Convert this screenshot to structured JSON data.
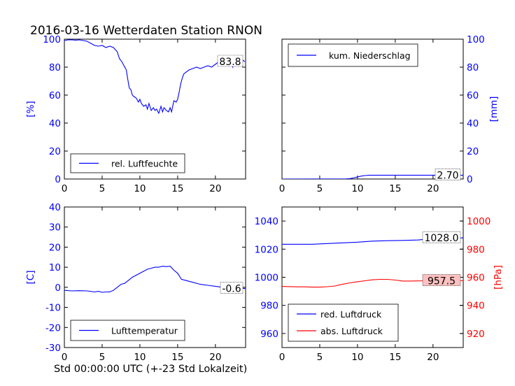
{
  "figure": {
    "title": "2016-03-16 Wetterdaten Station RNON",
    "xlabel": "Std 00:00:00 UTC (+-23 Std Lokalzeit)"
  },
  "colors": {
    "blue": "#0000ff",
    "red": "#ff0000",
    "axis": "#000000",
    "box_fill": "#ffc0c0"
  },
  "chart_data": [
    {
      "type": "line",
      "name": "humidity",
      "xlim": [
        0,
        24
      ],
      "ylim": [
        0,
        100
      ],
      "xticks": [
        0,
        5,
        10,
        15,
        20
      ],
      "yticks": [
        0,
        20,
        40,
        60,
        80,
        100
      ],
      "ylabel": "[%]",
      "ylabel_color": "#0000ff",
      "ytick_color": "#0000ff",
      "legend": "bottom-left",
      "last_value": "83.8",
      "series": [
        {
          "name": "rel. Luftfeuchte",
          "color": "#0000ff",
          "x": [
            0,
            0.5,
            1,
            1.5,
            2,
            2.5,
            3,
            3.5,
            4,
            4.5,
            5,
            5.5,
            6,
            6.5,
            7,
            7.3,
            7.6,
            8,
            8.2,
            8.4,
            8.6,
            8.8,
            9,
            9.2,
            9.5,
            9.8,
            10,
            10.2,
            10.5,
            10.8,
            11,
            11.2,
            11.5,
            11.8,
            12,
            12.2,
            12.5,
            12.8,
            13,
            13.2,
            13.5,
            13.8,
            14,
            14.2,
            14.5,
            14.8,
            15,
            15.2,
            15.4,
            15.6,
            15.8,
            16,
            16.5,
            17,
            17.5,
            18,
            18.5,
            19,
            19.5,
            20,
            20.5,
            21,
            21.3,
            21.6,
            22,
            22.3,
            22.6,
            23,
            23.3,
            23.6,
            23.9
          ],
          "y": [
            99,
            99.5,
            99.5,
            99.3,
            99.5,
            99,
            98.5,
            97,
            95.5,
            95,
            95.5,
            94,
            95,
            94,
            91,
            86,
            84,
            80,
            78,
            71,
            65,
            64,
            60,
            59,
            58,
            55,
            57,
            54,
            52,
            53,
            50,
            54,
            49,
            51,
            49,
            50,
            47,
            52,
            48,
            51,
            49,
            48,
            51,
            48,
            56,
            55,
            57,
            62,
            68,
            72,
            75,
            76,
            78,
            79,
            80,
            79,
            80,
            81,
            80,
            82,
            84,
            85,
            86,
            84,
            86,
            80,
            85,
            83,
            82,
            85,
            84
          ]
        }
      ]
    },
    {
      "type": "line",
      "name": "precipitation",
      "xlim": [
        0,
        24
      ],
      "ylim": [
        0,
        100
      ],
      "xticks": [
        0,
        5,
        10,
        15,
        20
      ],
      "yticks": [
        0,
        20,
        40,
        60,
        80,
        100
      ],
      "ylabel": "[mm]",
      "ylabel_side": "right",
      "ylabel_color": "#0000ff",
      "ytick_color": "#0000ff",
      "legend": "top-left",
      "last_value": "2.70",
      "series": [
        {
          "name": "kum. Niederschlag",
          "color": "#0000ff",
          "x": [
            0,
            8.5,
            9,
            9.5,
            10,
            10.5,
            11,
            11.5,
            12,
            15,
            20,
            24
          ],
          "y": [
            0,
            0.1,
            0.3,
            0.8,
            1.5,
            2.1,
            2.5,
            2.7,
            2.7,
            2.7,
            2.7,
            2.7
          ]
        }
      ]
    },
    {
      "type": "line",
      "name": "temperature",
      "xlim": [
        0,
        24
      ],
      "ylim": [
        -30,
        40
      ],
      "xticks": [
        0,
        5,
        10,
        15,
        20
      ],
      "yticks": [
        -30,
        -20,
        -10,
        0,
        10,
        20,
        30,
        40
      ],
      "ylabel": "[C]",
      "ylabel_color": "#0000ff",
      "ytick_color": "#0000ff",
      "legend": "bottom-left",
      "last_value": "-0.6",
      "series": [
        {
          "name": "Lufttemperatur",
          "color": "#0000ff",
          "x": [
            0,
            1,
            2,
            3,
            4,
            4.5,
            5,
            5.5,
            6,
            6.5,
            7,
            7.5,
            8,
            8.5,
            9,
            9.5,
            10,
            10.5,
            11,
            11.5,
            12,
            12.5,
            13,
            13.5,
            14,
            14.5,
            15,
            15.5,
            16,
            17,
            18,
            19,
            20,
            21,
            22,
            23,
            24
          ],
          "y": [
            -1.5,
            -1.8,
            -1.7,
            -1.8,
            -2.3,
            -2,
            -2.5,
            -2.3,
            -2.3,
            -1.5,
            0,
            1.5,
            2,
            3.5,
            5,
            6,
            7,
            8,
            9,
            9.5,
            10,
            10,
            10.5,
            10.3,
            10.5,
            8.5,
            7,
            4,
            3.5,
            2.5,
            1.5,
            1,
            0.5,
            0,
            -0.3,
            -0.5,
            -0.6
          ]
        }
      ]
    },
    {
      "type": "line",
      "name": "pressure",
      "xlim": [
        0,
        24
      ],
      "ylim": [
        950,
        1050
      ],
      "ylim_right": [
        910,
        1010
      ],
      "xticks": [
        0,
        5,
        10,
        15,
        20
      ],
      "yticks": [
        960,
        980,
        1000,
        1020,
        1040
      ],
      "yticks_right": [
        920,
        940,
        960,
        980,
        1000
      ],
      "ylabel_right": "[hPa]",
      "ylabel_color": "#ff0000",
      "ytick_color": "#0000ff",
      "ytick_right_color": "#ff0000",
      "legend": "bottom-left",
      "series": [
        {
          "name": "red. Luftdruck",
          "color": "#0000ff",
          "axis": "left",
          "last_value": "1028.0",
          "x": [
            0,
            2,
            4,
            6,
            8,
            10,
            12,
            14,
            16,
            18,
            20,
            22,
            24
          ],
          "y": [
            1023.5,
            1023.5,
            1023.5,
            1024,
            1024.5,
            1025,
            1025.7,
            1026,
            1026.2,
            1026.5,
            1027.5,
            1028,
            1028
          ]
        },
        {
          "name": "abs. Luftdruck",
          "color": "#ff0000",
          "axis": "right",
          "last_value": "957.5",
          "x": [
            0,
            2,
            3,
            4,
            5,
            6,
            7,
            8,
            9,
            10,
            11,
            12,
            13,
            14,
            15,
            16,
            17,
            18,
            19,
            20,
            21,
            22,
            23,
            24
          ],
          "y": [
            953.5,
            953.2,
            953.2,
            953,
            953,
            953.3,
            953.8,
            955,
            956,
            956.8,
            957.5,
            958.2,
            958.5,
            958.5,
            958,
            957.3,
            957.3,
            957.4,
            957.5,
            957.8,
            958,
            957.8,
            957.7,
            957.5
          ]
        }
      ]
    }
  ]
}
